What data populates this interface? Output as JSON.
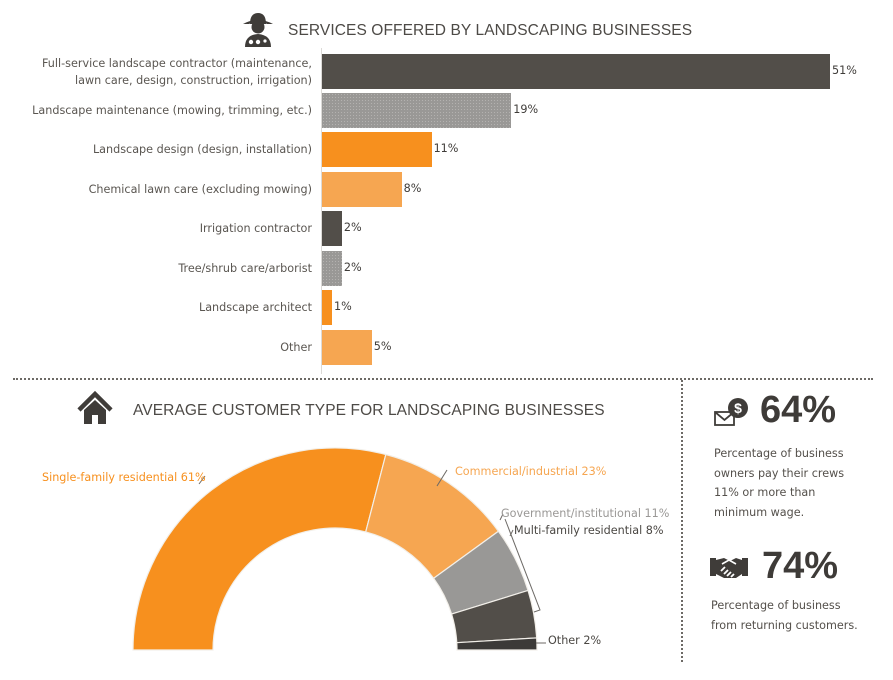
{
  "section1": {
    "title": "SERVICES OFFERED BY LANDSCAPING BUSINESSES",
    "icon": "landscaper-person-icon"
  },
  "section2": {
    "title": "AVERAGE CUSTOMER TYPE FOR LANDSCAPING BUSINESSES",
    "icon": "house-icon"
  },
  "stats": [
    {
      "icon": "envelope-dollar-icon",
      "value": "64%",
      "lines": [
        "Percentage of business",
        "owners pay their crews",
        "11% or more than",
        "minimum wage."
      ]
    },
    {
      "icon": "handshake-icon",
      "value": "74%",
      "lines": [
        "Percentage of business",
        "from returning customers."
      ]
    }
  ],
  "colors": {
    "dark": "#524e49",
    "gray": "#999896",
    "orange": "#f7901e",
    "light_orange": "#f6a651",
    "darkest": "#3c3a38"
  },
  "chart_data": [
    {
      "type": "bar",
      "orientation": "horizontal",
      "title": "SERVICES OFFERED BY LANDSCAPING BUSINESSES",
      "categories": [
        "Full-service landscape contractor (maintenance, lawn care, design, construction, irrigation)",
        "Landscape maintenance (mowing, trimming, etc.)",
        "Landscape design (design, installation)",
        "Chemical lawn care (excluding mowing)",
        "Irrigation contractor",
        "Tree/shrub care/arborist",
        "Landscape architect",
        "Other"
      ],
      "label_lines": [
        [
          "Full-service landscape contractor (maintenance,",
          "lawn care, design, construction, irrigation)"
        ],
        [
          "Landscape maintenance (mowing, trimming, etc.)"
        ],
        [
          "Landscape design (design, installation)"
        ],
        [
          "Chemical lawn care (excluding mowing)"
        ],
        [
          "Irrigation contractor"
        ],
        [
          "Tree/shrub care/arborist"
        ],
        [
          "Landscape architect"
        ],
        [
          "Other"
        ]
      ],
      "values": [
        51,
        19,
        11,
        8,
        2,
        2,
        1,
        5
      ],
      "value_labels": [
        "51%",
        "19%",
        "11%",
        "8%",
        "2%",
        "2%",
        "1%",
        "5%"
      ],
      "bar_colors": [
        "#524e49",
        "#999896",
        "#f7901e",
        "#f6a651",
        "#524e49",
        "#999896",
        "#f7901e",
        "#f6a651"
      ],
      "xlabel": "",
      "ylabel": "",
      "grid": false,
      "legend": "none"
    },
    {
      "type": "pie",
      "variant": "half-donut",
      "title": "AVERAGE CUSTOMER TYPE FOR LANDSCAPING BUSINESSES",
      "categories": [
        "Single-family residential",
        "Commercial/industrial",
        "Government/institutional",
        "Multi-family residential",
        "Other"
      ],
      "values": [
        61,
        23,
        11,
        8,
        2
      ],
      "labels": [
        "Single-family residential 61%",
        "Commercial/industrial 23%",
        "Government/institutional 11%",
        "Multi-family residential 8%",
        "Other 2%"
      ],
      "slice_colors": [
        "#f7901e",
        "#f6a651",
        "#999896",
        "#524e49",
        "#3c3a38"
      ],
      "label_colors": [
        "#f7901e",
        "#f6a651",
        "#9a9896",
        "#4a4743",
        "#4a4743"
      ],
      "legend": "callout labels"
    }
  ]
}
